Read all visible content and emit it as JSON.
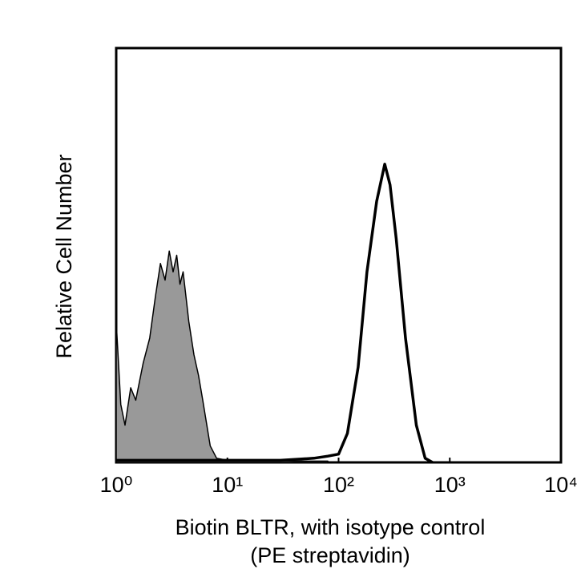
{
  "chart_data": {
    "type": "line",
    "ylabel": "Relative Cell Number",
    "xlabel": [
      "Biotin BLTR, with isotype control",
      "(PE streptavidin)"
    ],
    "xscale": "log",
    "xlim": [
      1,
      10000
    ],
    "xticks": [
      {
        "value": 1,
        "label": "10⁰"
      },
      {
        "value": 10,
        "label": "10¹"
      },
      {
        "value": 100,
        "label": "10²"
      },
      {
        "value": 1000,
        "label": "10³"
      },
      {
        "value": 10000,
        "label": "10⁴"
      }
    ],
    "ylim": [
      0,
      100
    ],
    "series": [
      {
        "color": "#000000",
        "fill": "#999999",
        "width": 1.5,
        "x": [
          1,
          1.1,
          1.2,
          1.35,
          1.5,
          1.75,
          2,
          2.25,
          2.5,
          2.75,
          3,
          3.25,
          3.5,
          3.75,
          4,
          4.5,
          5,
          5.5,
          6,
          7,
          8,
          10,
          20,
          40,
          80
        ],
        "values": [
          34,
          14,
          9,
          18,
          15,
          24,
          30,
          40,
          48,
          44,
          51,
          46,
          50,
          43,
          46,
          34,
          26,
          21,
          15,
          4,
          1,
          0.5,
          0.5,
          0.3,
          0.3
        ]
      },
      {
        "color": "#000000",
        "fill": "none",
        "width": 3.5,
        "x": [
          1,
          10,
          30,
          60,
          80,
          100,
          120,
          150,
          180,
          220,
          260,
          290,
          330,
          400,
          500,
          600,
          700
        ],
        "values": [
          0.5,
          0.5,
          0.5,
          1,
          1.5,
          2,
          7,
          23,
          46,
          63,
          72,
          67,
          54,
          30,
          9,
          1,
          0
        ]
      }
    ]
  }
}
